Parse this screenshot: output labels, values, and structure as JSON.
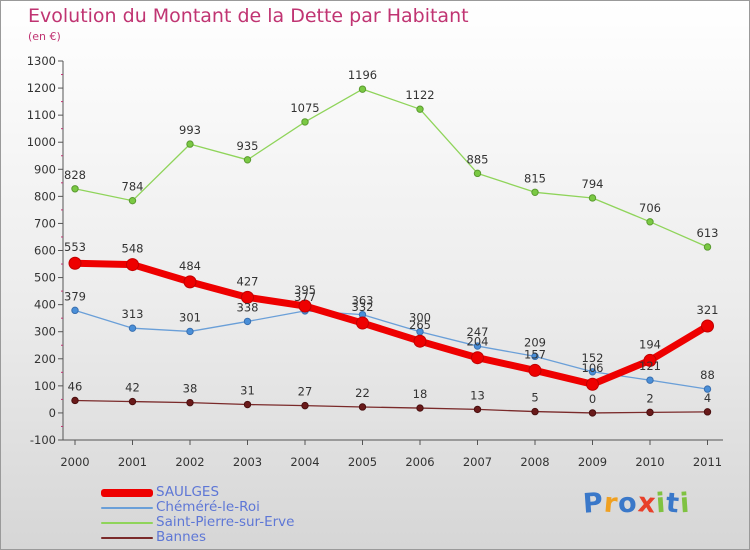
{
  "title": "Evolution du Montant de la Dette par Habitant",
  "subtitle": "(en €)",
  "logo": {
    "letters": [
      "P",
      "r",
      "o",
      "x",
      "i",
      "t",
      "i"
    ],
    "colors": [
      "#3a78c9",
      "#f0a020",
      "#3a78c9",
      "#e8402a",
      "#7fc241",
      "#3a78c9",
      "#7fc241"
    ]
  },
  "chart_data": {
    "type": "line",
    "x": [
      "2000",
      "2001",
      "2002",
      "2003",
      "2004",
      "2005",
      "2006",
      "2007",
      "2008",
      "2009",
      "2010",
      "2011"
    ],
    "ylim": [
      -100,
      1300
    ],
    "yticks": [
      "-100",
      "0",
      "100",
      "200",
      "300",
      "400",
      "500",
      "600",
      "700",
      "800",
      "900",
      "1000",
      "1100",
      "1200",
      "1300"
    ],
    "grid": false,
    "legend_position": "bottom-left",
    "series": [
      {
        "name": "Saint-Pierre-sur-Erve",
        "color": "#8fd45a",
        "values": [
          828,
          784,
          993,
          935,
          1075,
          1196,
          1122,
          885,
          815,
          794,
          706,
          613
        ]
      },
      {
        "name": "Chéméré-le-Roi",
        "color": "#6a9fd8",
        "values": [
          379,
          313,
          301,
          338,
          377,
          363,
          300,
          247,
          209,
          152,
          121,
          88
        ]
      },
      {
        "name": "SAULGES",
        "color": "#ee0000",
        "values": [
          553,
          548,
          484,
          427,
          395,
          332,
          265,
          204,
          157,
          106,
          194,
          321
        ]
      },
      {
        "name": "Bannes",
        "color": "#7a2a2a",
        "values": [
          46,
          42,
          38,
          31,
          27,
          22,
          18,
          13,
          5,
          0,
          2,
          4
        ]
      }
    ],
    "labels": {
      "SAULGES": [
        "553",
        "548",
        "484",
        "427",
        "395",
        "332",
        "265",
        "204",
        "157",
        "106",
        "194",
        "321"
      ],
      "Chéméré-le-Roi": [
        "379",
        "313",
        "301",
        "338",
        "377",
        "363",
        "300",
        "247",
        "209",
        "152",
        "121",
        "88"
      ],
      "Saint-Pierre-sur-Erve": [
        "828",
        "784",
        "993",
        "935",
        "1075",
        "1196",
        "1122",
        "885",
        "815",
        "794",
        "706",
        "613"
      ],
      "Bannes": [
        "46",
        "42",
        "38",
        "31",
        "27",
        "22",
        "18",
        "13",
        "5",
        "0",
        "2",
        "4"
      ]
    },
    "legend": [
      {
        "label": "SAULGES",
        "color": "#ee0000"
      },
      {
        "label": "Chéméré-le-Roi",
        "color": "#6a9fd8"
      },
      {
        "label": "Saint-Pierre-sur-Erve",
        "color": "#8fd45a"
      },
      {
        "label": "Bannes",
        "color": "#7a2a2a"
      }
    ]
  }
}
